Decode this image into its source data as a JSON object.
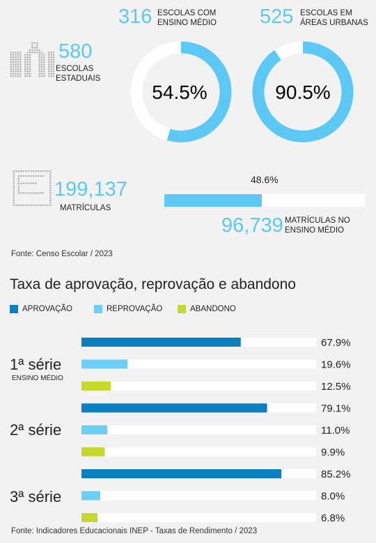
{
  "stats": {
    "escolas_estaduais": {
      "value": "580",
      "label_line1": "ESCOLAS",
      "label_line2": "ESTADUAIS"
    },
    "ensino_medio": {
      "value": "316",
      "label_line1": "ESCOLAS COM",
      "label_line2": "ENSINO MÉDIO",
      "percent_label": "54.5%",
      "fraction": 0.545
    },
    "areas_urbanas": {
      "value": "525",
      "label_line1": "ESCOLAS EM",
      "label_line2": "ÁREAS URBANAS",
      "percent_label": "90.5%",
      "fraction": 0.905
    },
    "matriculas": {
      "value": "199,137",
      "label": "MATRÍCULAS"
    },
    "matriculas_ensino_medio": {
      "value": "96,739",
      "label_line1": "MATRÍCULAS NO",
      "label_line2": "ENSINO MÉDIO",
      "percent_label": "48.6%",
      "fraction": 0.486
    }
  },
  "source_top": "Fonte: Censo Escolar / 2023",
  "source_bottom": "Fonte: Indicadores Educacionais INEP - Taxas de Rendimento / 2023",
  "colors": {
    "aprovacao": "#0a7fc2",
    "reprovacao": "#6ccff6",
    "abandono": "#c5d92d",
    "accent": "#5bc8f5"
  },
  "icons": {
    "school": "school-building-icon",
    "enrollment": "enrollment-document-icon"
  },
  "chart_data": {
    "type": "bar",
    "orientation": "horizontal",
    "title": "Taxa de aprovação, reprovação e abandono",
    "legend": [
      "APROVAÇÃO",
      "REPROVAÇÃO",
      "ABANDONO"
    ],
    "legend_position": "top",
    "xlim": [
      0,
      100
    ],
    "categories": [
      "1ª série",
      "2ª série",
      "3ª série"
    ],
    "category_subtitles": [
      "ENSINO MÉDIO",
      "",
      ""
    ],
    "series": [
      {
        "name": "APROVAÇÃO",
        "values": [
          67.9,
          79.1,
          85.2
        ],
        "labels": [
          "67.9%",
          "79.1%",
          "85.2%"
        ]
      },
      {
        "name": "REPROVAÇÃO",
        "values": [
          19.6,
          11.0,
          8.0
        ],
        "labels": [
          "19.6%",
          "11.0%",
          "8.0%"
        ]
      },
      {
        "name": "ABANDONO",
        "values": [
          12.5,
          9.9,
          6.8
        ],
        "labels": [
          "12.5%",
          "9.9%",
          "6.8%"
        ]
      }
    ]
  }
}
